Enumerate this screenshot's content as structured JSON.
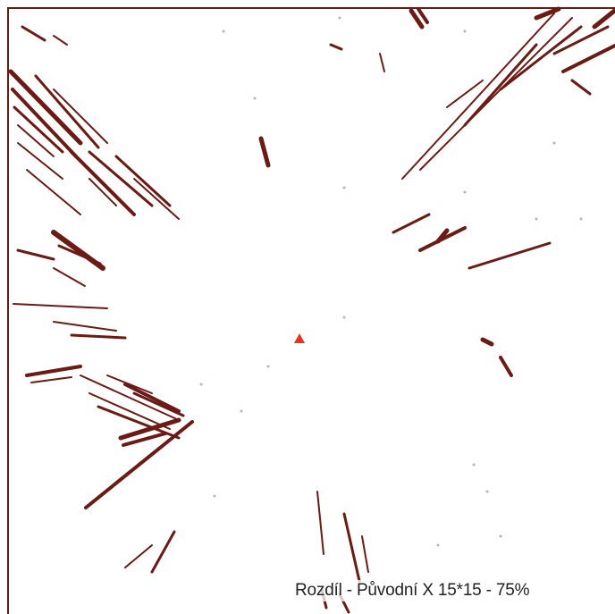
{
  "colors": {
    "background": "#ffffff",
    "pattern": "#6b1a14",
    "marker": "#e8331c"
  },
  "icons": {
    "observer_marker": "triangle-icon"
  },
  "caption": "Rozdíl - Původní X 15*15 - 75%"
}
